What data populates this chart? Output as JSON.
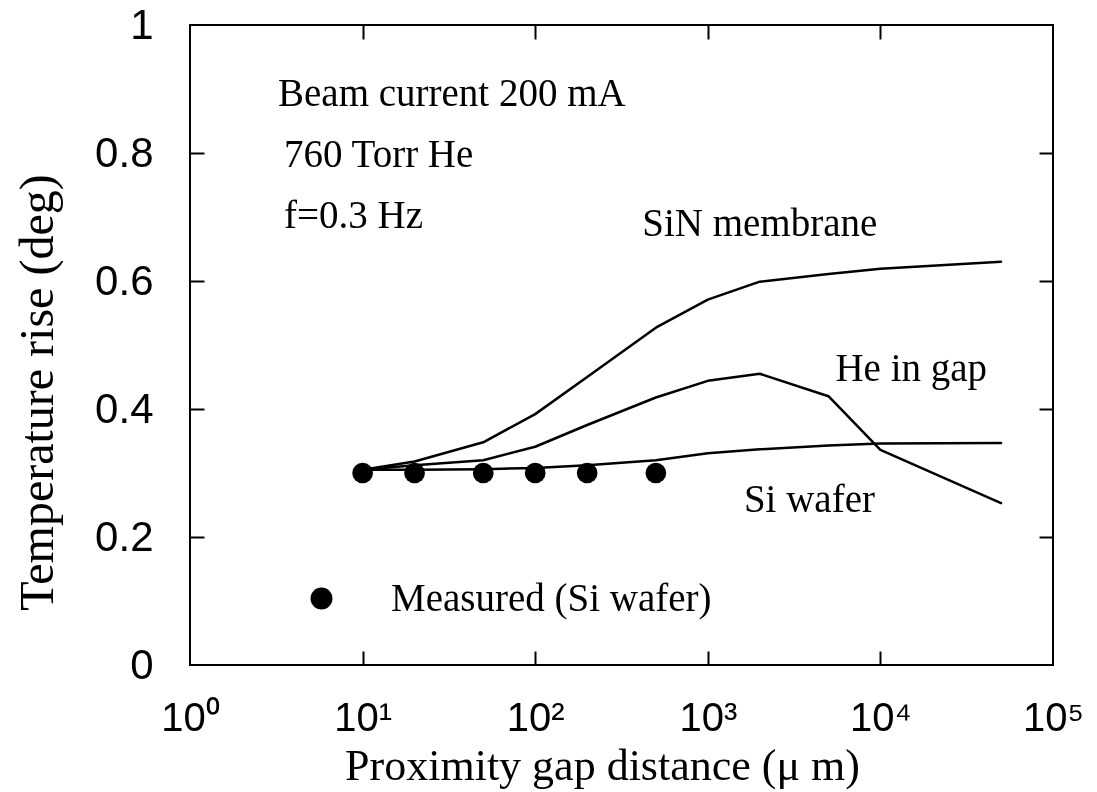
{
  "chart_data": {
    "type": "line",
    "xlabel": "Proximity gap distance (μ m)",
    "ylabel": "Temperature rise (deg)",
    "annotations": [
      "Beam current 200 mA",
      "760 Torr He",
      "f=0.3 Hz"
    ],
    "x": [
      10,
      20,
      50,
      100,
      200,
      500,
      1000,
      2000,
      5000,
      10000,
      50000
    ],
    "series": [
      {
        "name": "SiN membrane",
        "color": "#000000",
        "values": [
          0.305,
          0.318,
          0.348,
          0.392,
          0.45,
          0.527,
          0.571,
          0.599,
          0.611,
          0.619,
          0.63
        ]
      },
      {
        "name": "He in gap",
        "color": "#000000",
        "values": [
          0.305,
          0.312,
          0.32,
          0.341,
          0.375,
          0.418,
          0.444,
          0.455,
          0.42,
          0.336,
          0.253
        ]
      },
      {
        "name": "Si wafer",
        "color": "#000000",
        "values": [
          0.305,
          0.305,
          0.306,
          0.308,
          0.312,
          0.32,
          0.331,
          0.337,
          0.343,
          0.346,
          0.347
        ]
      },
      {
        "name": "Measured (Si wafer)",
        "type": "scatter",
        "marker": "circle",
        "color": "#000000",
        "x": [
          10,
          20,
          50,
          100,
          200,
          500
        ],
        "values": [
          0.3,
          0.3,
          0.3,
          0.3,
          0.3,
          0.3
        ]
      }
    ],
    "xlim": [
      1,
      100000
    ],
    "xticks": [
      {
        "value": 1,
        "label": "10⁰"
      },
      {
        "value": 10,
        "label": "10¹"
      },
      {
        "value": 100,
        "label": "10²"
      },
      {
        "value": 1000,
        "label": "10³"
      },
      {
        "value": 10000,
        "label": "10⁴"
      },
      {
        "value": 100000,
        "label": "10⁵"
      }
    ],
    "ylim": [
      0,
      1
    ],
    "yticks": [
      0,
      0.2,
      0.4,
      0.6,
      0.8,
      1
    ],
    "log": "x",
    "grid": false,
    "legend": "bottom left"
  }
}
